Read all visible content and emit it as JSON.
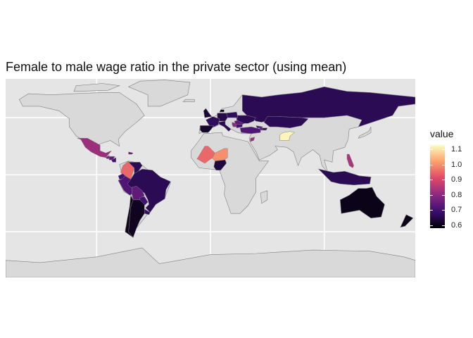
{
  "title": "Female to male wage ratio in the private sector (using mean)",
  "legend": {
    "title": "value",
    "ticks": [
      "1.1",
      "1.0",
      "0.9",
      "0.8",
      "0.7",
      "0.6"
    ],
    "tick_values": [
      1.1,
      1.0,
      0.9,
      0.8,
      0.7,
      0.6
    ],
    "range": [
      0.58,
      1.13
    ]
  },
  "colors": {
    "background": "#ffffff",
    "panel": "#e5e5e5",
    "gridline": "#ffffff",
    "land_no_data": "#d9d9d9",
    "border": "#7f7f7f",
    "scale": [
      "#000004",
      "#3b0f70",
      "#8c2981",
      "#de4968",
      "#fe9f6d",
      "#fcfdbf"
    ]
  },
  "map_data": {
    "projection": "equirectangular",
    "longitude_range": [
      -180,
      180
    ],
    "latitude_range": [
      -90,
      84
    ],
    "countries": [
      {
        "name": "Russia",
        "value": 0.66
      },
      {
        "name": "Kazakhstan",
        "value": 0.66
      },
      {
        "name": "Afghanistan",
        "value": 1.12
      },
      {
        "name": "Georgia",
        "value": 0.7
      },
      {
        "name": "Armenia",
        "value": 0.72
      },
      {
        "name": "Azerbaijan",
        "value": 0.68
      },
      {
        "name": "Turkey",
        "value": 0.72
      },
      {
        "name": "Romania",
        "value": 0.74
      },
      {
        "name": "Bulgaria",
        "value": 0.7
      },
      {
        "name": "Serbia",
        "value": 0.8
      },
      {
        "name": "Ukraine",
        "value": 0.66
      },
      {
        "name": "Poland",
        "value": 0.67
      },
      {
        "name": "Germany",
        "value": 0.65
      },
      {
        "name": "France",
        "value": 0.67
      },
      {
        "name": "Spain",
        "value": 0.62
      },
      {
        "name": "Italy",
        "value": 0.66
      },
      {
        "name": "United Kingdom",
        "value": 0.63
      },
      {
        "name": "Denmark",
        "value": 0.6
      },
      {
        "name": "Jordan",
        "value": 0.82
      },
      {
        "name": "Niger",
        "value": 1.0
      },
      {
        "name": "Mali",
        "value": 0.95
      },
      {
        "name": "Nigeria",
        "value": 0.64
      },
      {
        "name": "Mexico",
        "value": 0.82
      },
      {
        "name": "Guatemala",
        "value": 0.76
      },
      {
        "name": "Honduras",
        "value": 0.74
      },
      {
        "name": "Nicaragua",
        "value": 0.7
      },
      {
        "name": "Dominican Republic",
        "value": 0.74
      },
      {
        "name": "Colombia",
        "value": 0.95
      },
      {
        "name": "Venezuela",
        "value": 0.66
      },
      {
        "name": "Ecuador",
        "value": 0.7
      },
      {
        "name": "Peru",
        "value": 0.72
      },
      {
        "name": "Brazil",
        "value": 0.66
      },
      {
        "name": "Bolivia",
        "value": 0.74
      },
      {
        "name": "Paraguay",
        "value": 0.7
      },
      {
        "name": "Uruguay",
        "value": 0.68
      },
      {
        "name": "Argentina",
        "value": 0.61
      },
      {
        "name": "Chile",
        "value": 0.6
      },
      {
        "name": "Philippines",
        "value": 0.84
      },
      {
        "name": "Indonesia",
        "value": 0.66
      },
      {
        "name": "Australia",
        "value": 0.6
      },
      {
        "name": "New Zealand",
        "value": 0.6
      }
    ]
  }
}
